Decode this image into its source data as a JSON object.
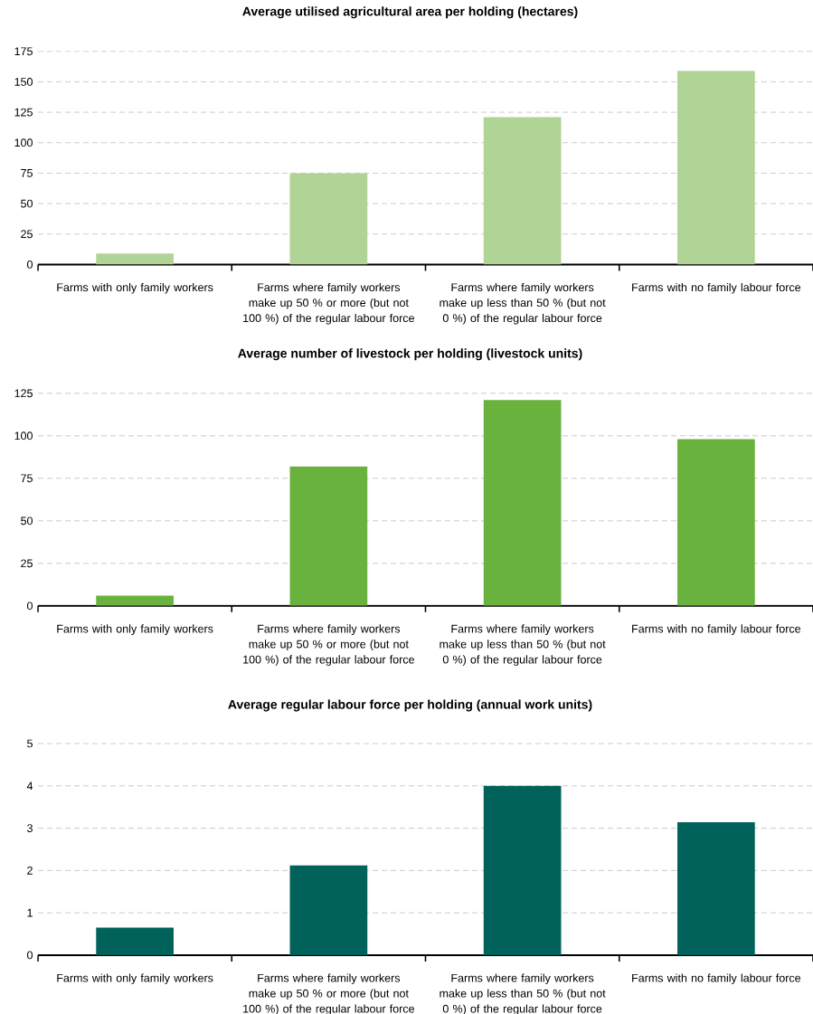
{
  "chart_data": [
    {
      "type": "bar",
      "title": "Average utilised agricultural area per holding (hectares)",
      "categories": [
        "Farms with only family workers",
        "Farms where family workers make up 50 % or more (but not 100 %) of the regular labour force",
        "Farms where family workers make up less than 50 % (but not 0 %) of the regular labour force",
        "Farms with no family labour force"
      ],
      "values": [
        9,
        75,
        121,
        159
      ],
      "color": "#b0d396",
      "ylim": [
        0,
        175
      ],
      "yticks": [
        0,
        25,
        50,
        75,
        100,
        125,
        150,
        175
      ],
      "grid": "y"
    },
    {
      "type": "bar",
      "title": "Average number of livestock per holding (livestock units)",
      "categories": [
        "Farms with only family workers",
        "Farms where family workers make up 50 % or more (but not 100 %) of the regular labour force",
        "Farms where family workers make up less than 50 % (but not 0 %) of the regular labour force",
        "Farms with no family labour force"
      ],
      "values": [
        6,
        82,
        121,
        98
      ],
      "color": "#6ab23e",
      "ylim": [
        0,
        125
      ],
      "yticks": [
        0,
        25,
        50,
        75,
        100,
        125
      ],
      "grid": "y"
    },
    {
      "type": "bar",
      "title": "Average regular labour force per holding (annual work units)",
      "categories": [
        "Farms with only family workers",
        "Farms where family workers make up 50 % or more (but not 100 %) of the regular labour force",
        "Farms where family workers make up less than 50 % (but not 0 %) of the regular labour force",
        "Farms with no family labour force"
      ],
      "values": [
        0.65,
        2.12,
        4.0,
        3.14
      ],
      "color": "#00625a",
      "ylim": [
        0,
        5
      ],
      "yticks": [
        0,
        1,
        2,
        3,
        4,
        5
      ],
      "grid": "y"
    }
  ]
}
